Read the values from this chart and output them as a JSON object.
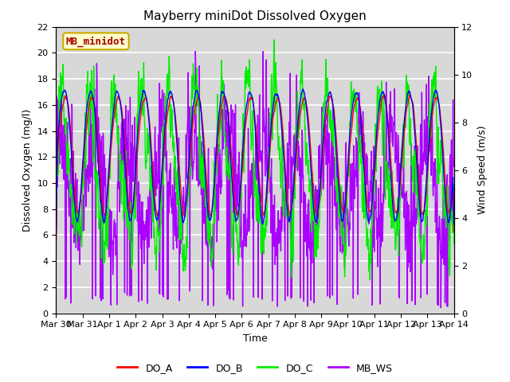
{
  "title": "Mayberry miniDot Dissolved Oxygen",
  "xlabel": "Time",
  "ylabel_left": "Dissolved Oxygen (mg/l)",
  "ylabel_right": "Wind Speed (m/s)",
  "ylim_left": [
    0,
    22
  ],
  "ylim_right": [
    0,
    12
  ],
  "yticks_left": [
    0,
    2,
    4,
    6,
    8,
    10,
    12,
    14,
    16,
    18,
    20,
    22
  ],
  "yticks_right": [
    0,
    2,
    4,
    6,
    8,
    10,
    12
  ],
  "xtick_labels": [
    "Mar 30",
    "Mar 31",
    "Apr 1",
    "Apr 2",
    "Apr 3",
    "Apr 4",
    "Apr 5",
    "Apr 6",
    "Apr 7",
    "Apr 8",
    "Apr 9",
    "Apr 10",
    "Apr 11",
    "Apr 12",
    "Apr 13",
    "Apr 14"
  ],
  "legend_labels": [
    "DO_A",
    "DO_B",
    "DO_C",
    "MB_WS"
  ],
  "legend_colors": [
    "red",
    "blue",
    "#00ee00",
    "#aa00ff"
  ],
  "line_colors": [
    "red",
    "blue",
    "#00ee00",
    "#aa00ff"
  ],
  "bg_color": "#d8d8d8",
  "annotation_text": "MB_minidot",
  "annotation_color": "#aa0000",
  "annotation_bg": "#ffffcc",
  "annotation_border": "#ccaa00",
  "title_fontsize": 11,
  "axis_fontsize": 9,
  "tick_fontsize": 8,
  "legend_fontsize": 9
}
